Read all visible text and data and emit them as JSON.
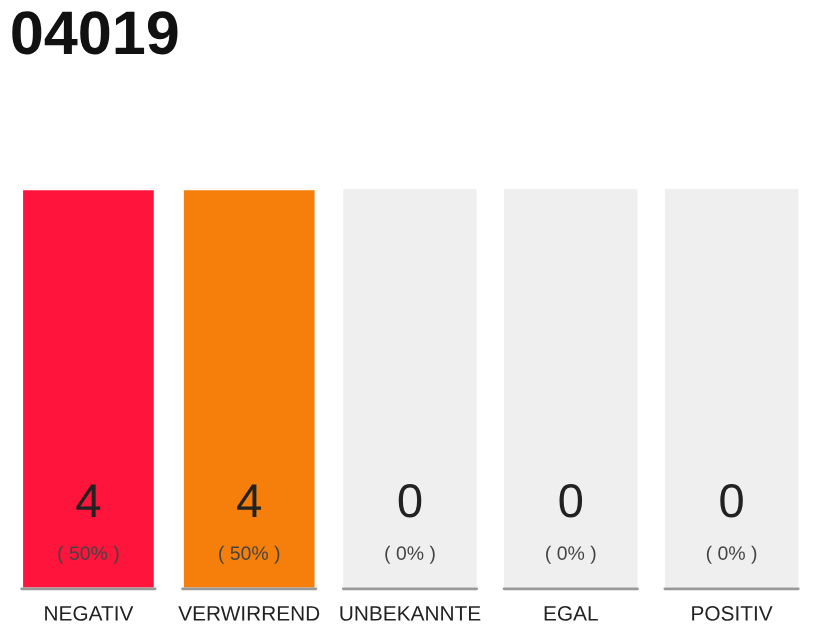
{
  "chart_data": {
    "type": "bar",
    "title": "04019",
    "categories": [
      "NEGATIV",
      "VERWIRREND",
      "UNBEKANNTE",
      "EGAL",
      "POSITIV"
    ],
    "values": [
      4,
      4,
      0,
      0,
      0
    ],
    "colors": [
      "#ff143c",
      "#f57f0a",
      "#efefef",
      "#efefef",
      "#efefef"
    ],
    "value_labels": [
      "4\n( 50% )",
      "4\n( 50% )",
      "0\n( 0% )",
      "0\n( 0% )",
      "0\n( 0% )"
    ],
    "grid": false,
    "legend": false
  }
}
